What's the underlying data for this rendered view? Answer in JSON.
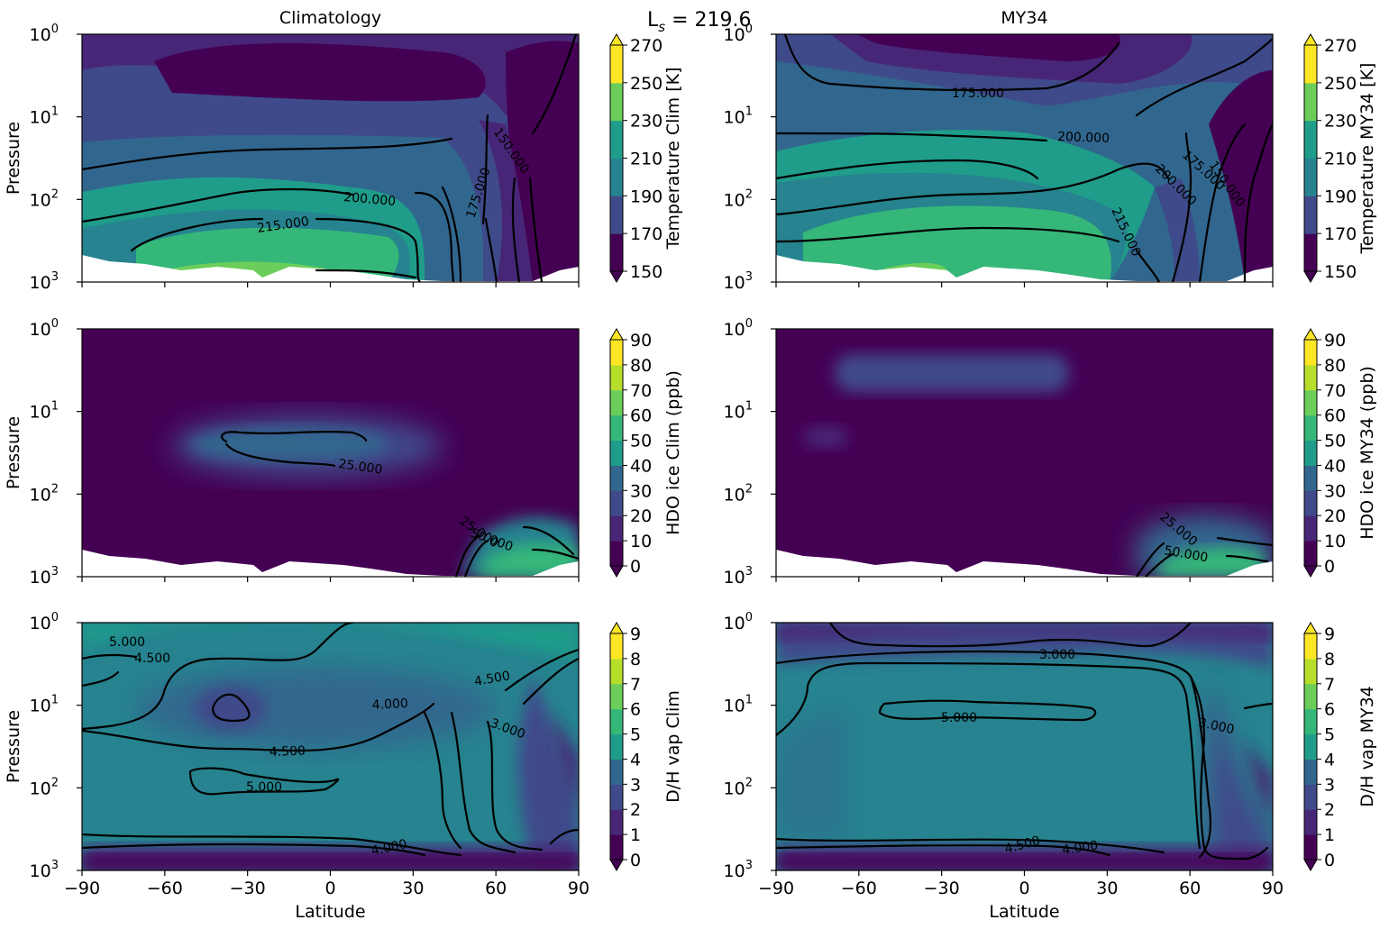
{
  "figure": {
    "suptitle_main": "L",
    "suptitle_sub": "s",
    "suptitle_rest": " = 219.6"
  },
  "colors": {
    "viridis": [
      "#440154",
      "#482677",
      "#3f4a8a",
      "#31678e",
      "#26838f",
      "#1f9d8a",
      "#35b779",
      "#6cce5a",
      "#b6de2b",
      "#fde725"
    ]
  },
  "chart_data": [
    {
      "type": "heatmap",
      "row": 0,
      "col": 0,
      "title": "Climatology",
      "xlabel": "",
      "ylabel": "Pressure",
      "xlim": [
        -90,
        90
      ],
      "ylim": [
        1000,
        1
      ],
      "yscale": "log",
      "x_ticks": [
        "−90",
        "−60",
        "−30",
        "0",
        "30",
        "60",
        "90"
      ],
      "y_ticks": [
        {
          "base": "10",
          "exp": "0"
        },
        {
          "base": "10",
          "exp": "1"
        },
        {
          "base": "10",
          "exp": "2"
        },
        {
          "base": "10",
          "exp": "3"
        }
      ],
      "colorbar": {
        "label": "Temperature Clim [K]",
        "ticks": [
          "150",
          "170",
          "190",
          "210",
          "230",
          "250",
          "270"
        ],
        "extend": "both"
      },
      "contour_labels": [
        "200.000",
        "215.000",
        "175.000",
        "150.000"
      ]
    },
    {
      "type": "heatmap",
      "row": 0,
      "col": 1,
      "title": "MY34",
      "xlabel": "",
      "ylabel": "",
      "xlim": [
        -90,
        90
      ],
      "ylim": [
        1000,
        1
      ],
      "yscale": "log",
      "x_ticks": [],
      "y_ticks": [
        {
          "base": "10",
          "exp": "0"
        },
        {
          "base": "10",
          "exp": "1"
        },
        {
          "base": "10",
          "exp": "2"
        },
        {
          "base": "10",
          "exp": "3"
        }
      ],
      "colorbar": {
        "label": "Temperature MY34 [K]",
        "ticks": [
          "150",
          "170",
          "190",
          "210",
          "230",
          "250",
          "270"
        ],
        "extend": "both"
      },
      "contour_labels": [
        "175.000",
        "200.000",
        "200.000",
        "175.000",
        "150.000",
        "215.000"
      ]
    },
    {
      "type": "heatmap",
      "row": 1,
      "col": 0,
      "title": "",
      "xlabel": "",
      "ylabel": "Pressure",
      "xlim": [
        -90,
        90
      ],
      "ylim": [
        1000,
        1
      ],
      "yscale": "log",
      "x_ticks": [],
      "y_ticks": [
        {
          "base": "10",
          "exp": "0"
        },
        {
          "base": "10",
          "exp": "1"
        },
        {
          "base": "10",
          "exp": "2"
        },
        {
          "base": "10",
          "exp": "3"
        }
      ],
      "colorbar": {
        "label": "HDO ice Clim (ppb)",
        "ticks": [
          "0",
          "10",
          "20",
          "30",
          "40",
          "50",
          "60",
          "70",
          "80",
          "90"
        ],
        "extend": "both"
      },
      "contour_labels": [
        "25.000",
        "25.000",
        "50.000"
      ]
    },
    {
      "type": "heatmap",
      "row": 1,
      "col": 1,
      "title": "",
      "xlabel": "",
      "ylabel": "",
      "xlim": [
        -90,
        90
      ],
      "ylim": [
        1000,
        1
      ],
      "yscale": "log",
      "x_ticks": [],
      "y_ticks": [
        {
          "base": "10",
          "exp": "0"
        },
        {
          "base": "10",
          "exp": "1"
        },
        {
          "base": "10",
          "exp": "2"
        },
        {
          "base": "10",
          "exp": "3"
        }
      ],
      "colorbar": {
        "label": "HDO ice MY34 (ppb)",
        "ticks": [
          "0",
          "10",
          "20",
          "30",
          "40",
          "50",
          "60",
          "70",
          "80",
          "90"
        ],
        "extend": "both"
      },
      "contour_labels": [
        "25.000",
        "50.000"
      ]
    },
    {
      "type": "heatmap",
      "row": 2,
      "col": 0,
      "title": "",
      "xlabel": "Latitude",
      "ylabel": "Pressure",
      "xlim": [
        -90,
        90
      ],
      "ylim": [
        1000,
        1
      ],
      "yscale": "log",
      "x_ticks": [
        "−90",
        "−60",
        "−30",
        "0",
        "30",
        "60",
        "90"
      ],
      "y_ticks": [
        {
          "base": "10",
          "exp": "0"
        },
        {
          "base": "10",
          "exp": "1"
        },
        {
          "base": "10",
          "exp": "2"
        },
        {
          "base": "10",
          "exp": "3"
        }
      ],
      "colorbar": {
        "label": "D/H vap Clim",
        "ticks": [
          "0",
          "1",
          "2",
          "3",
          "4",
          "5",
          "6",
          "7",
          "8",
          "9"
        ],
        "extend": "both"
      },
      "contour_labels": [
        "5.000",
        "4.500",
        "4.000",
        "4.500",
        "5.000",
        "4.500",
        "3.000",
        "4.000"
      ]
    },
    {
      "type": "heatmap",
      "row": 2,
      "col": 1,
      "title": "",
      "xlabel": "Latitude",
      "ylabel": "",
      "xlim": [
        -90,
        90
      ],
      "ylim": [
        1000,
        1
      ],
      "yscale": "log",
      "x_ticks": [
        "−90",
        "−60",
        "−30",
        "0",
        "30",
        "60",
        "90"
      ],
      "y_ticks": [
        {
          "base": "10",
          "exp": "0"
        },
        {
          "base": "10",
          "exp": "1"
        },
        {
          "base": "10",
          "exp": "2"
        },
        {
          "base": "10",
          "exp": "3"
        }
      ],
      "colorbar": {
        "label": "D/H vap MY34",
        "ticks": [
          "0",
          "1",
          "2",
          "3",
          "4",
          "5",
          "6",
          "7",
          "8",
          "9"
        ],
        "extend": "both"
      },
      "contour_labels": [
        "3.000",
        "5.000",
        "3.000",
        "4.500",
        "4.000"
      ]
    }
  ]
}
